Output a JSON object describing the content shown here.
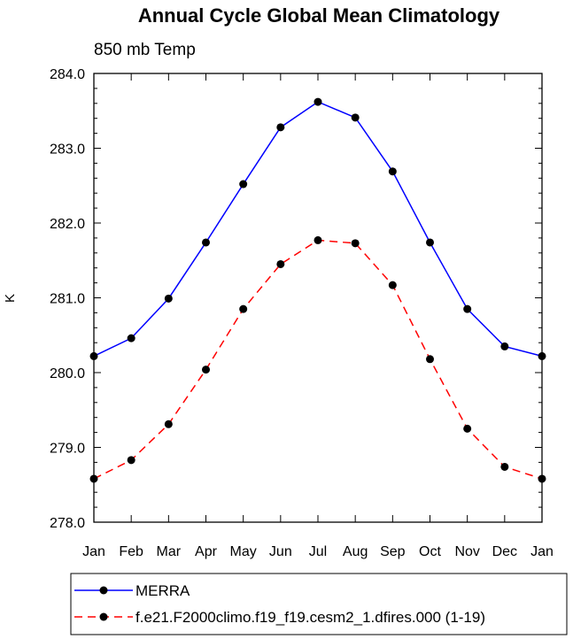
{
  "chart_data": {
    "type": "line",
    "title": "Annual Cycle Global Mean Climatology",
    "subtitle": "850 mb Temp",
    "xlabel": "",
    "ylabel": "K",
    "categories": [
      "Jan",
      "Feb",
      "Mar",
      "Apr",
      "May",
      "Jun",
      "Jul",
      "Aug",
      "Sep",
      "Oct",
      "Nov",
      "Dec",
      "Jan"
    ],
    "ylim": [
      278.0,
      284.0
    ],
    "yticks": [
      "278.0",
      "279.0",
      "280.0",
      "281.0",
      "282.0",
      "283.0",
      "284.0"
    ],
    "y_minor_step": 0.2,
    "series": [
      {
        "name": "MERRA",
        "color": "#0000ff",
        "dash": "solid",
        "values": [
          280.22,
          280.46,
          280.99,
          281.74,
          282.52,
          283.28,
          283.62,
          283.41,
          282.69,
          281.74,
          280.85,
          280.35,
          280.22
        ]
      },
      {
        "name": "f.e21.F2000climo.f19_f19.cesm2_1.dfires.000 (1-19)",
        "color": "#ff0000",
        "dash": "dashed",
        "values": [
          278.58,
          278.83,
          279.31,
          280.04,
          280.85,
          281.45,
          281.77,
          281.73,
          281.17,
          280.18,
          279.25,
          278.74,
          278.58
        ]
      }
    ],
    "legend_position": "bottom"
  }
}
